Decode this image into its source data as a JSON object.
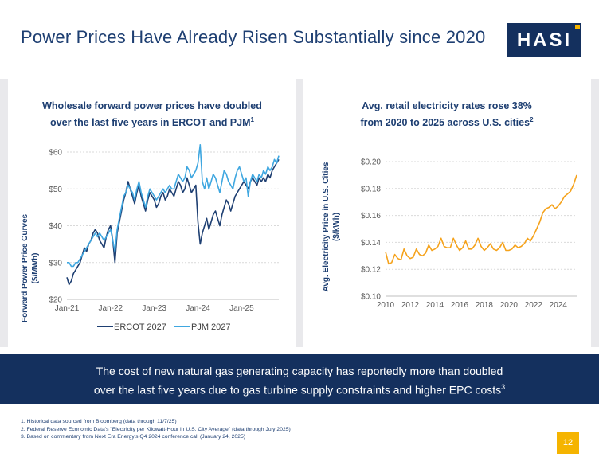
{
  "slide": {
    "title": "Power Prices Have Already Risen Substantially since 2020",
    "logo_text": "HASI",
    "banner_line1": "The cost of new natural gas generating capacity has reportedly more than doubled",
    "banner_line2": "over the last five years due to gas turbine supply constraints and higher EPC costs",
    "banner_footnote_ref": "3",
    "footnotes": [
      "1.  Historical data sourced from Bloomberg (data through 11/7/25)",
      "2.  Federal Reserve Economic Data's \"Electricity per Kilowatt-Hour in U.S. City Average\" (data through July 2025)",
      "3.  Based on commentary from Next Era Energy's Q4 2024 conference call (January 24, 2025)"
    ],
    "page_number": "12",
    "colors": {
      "navy": "#14305e",
      "gold": "#f5b400",
      "ercot": "#1e3f72",
      "pjm": "#3fa7e0",
      "retail": "#f5a21b"
    }
  },
  "chart_data": [
    {
      "type": "line",
      "title_line1": "Wholesale forward power prices have doubled",
      "title_line2": "over the last five years in ERCOT and PJM",
      "title_footnote": "1",
      "ylabel_line1": "Forward Power Price Curves",
      "ylabel_line2": "($/MWh)",
      "xlabel": "",
      "ylim": [
        20,
        60
      ],
      "xlim": [
        2021.0,
        2025.85
      ],
      "y_ticks": [
        20,
        30,
        40,
        50,
        60
      ],
      "y_tick_labels": [
        "$20",
        "$30",
        "$40",
        "$50",
        "$60"
      ],
      "x_ticks": [
        2021,
        2022,
        2023,
        2024,
        2025
      ],
      "x_tick_labels": [
        "Jan-21",
        "Jan-22",
        "Jan-23",
        "Jan-24",
        "Jan-25"
      ],
      "grid": true,
      "legend_position": "bottom",
      "series": [
        {
          "name": "ERCOT 2027",
          "color": "#1e3f72",
          "x": [
            2021.0,
            2021.05,
            2021.1,
            2021.15,
            2021.2,
            2021.25,
            2021.3,
            2021.35,
            2021.4,
            2021.45,
            2021.5,
            2021.55,
            2021.6,
            2021.65,
            2021.7,
            2021.75,
            2021.8,
            2021.85,
            2021.9,
            2021.95,
            2022.0,
            2022.05,
            2022.1,
            2022.15,
            2022.2,
            2022.25,
            2022.3,
            2022.35,
            2022.4,
            2022.45,
            2022.5,
            2022.55,
            2022.6,
            2022.65,
            2022.7,
            2022.75,
            2022.8,
            2022.85,
            2022.9,
            2022.95,
            2023.0,
            2023.05,
            2023.1,
            2023.15,
            2023.2,
            2023.25,
            2023.3,
            2023.35,
            2023.4,
            2023.45,
            2023.5,
            2023.55,
            2023.6,
            2023.65,
            2023.7,
            2023.75,
            2023.8,
            2023.85,
            2023.9,
            2023.95,
            2024.0,
            2024.05,
            2024.1,
            2024.15,
            2024.2,
            2024.25,
            2024.3,
            2024.35,
            2024.4,
            2024.45,
            2024.5,
            2024.55,
            2024.6,
            2024.65,
            2024.7,
            2024.75,
            2024.8,
            2024.85,
            2024.9,
            2024.95,
            2025.0,
            2025.05,
            2025.1,
            2025.15,
            2025.2,
            2025.25,
            2025.3,
            2025.35,
            2025.4,
            2025.45,
            2025.5,
            2025.55,
            2025.6,
            2025.65,
            2025.7,
            2025.75,
            2025.8,
            2025.85
          ],
          "values": [
            26,
            24,
            25,
            27,
            28,
            29,
            30,
            32,
            34,
            33,
            35,
            36,
            38,
            39,
            38,
            36,
            35,
            34,
            37,
            39,
            40,
            36,
            30,
            38,
            41,
            44,
            47,
            49,
            52,
            50,
            48,
            46,
            49,
            51,
            48,
            46,
            44,
            47,
            49,
            48,
            47,
            45,
            46,
            48,
            49,
            47,
            48,
            50,
            49,
            48,
            50,
            52,
            51,
            49,
            50,
            53,
            51,
            49,
            50,
            51,
            41,
            35,
            38,
            40,
            42,
            39,
            41,
            43,
            44,
            42,
            40,
            43,
            45,
            47,
            46,
            44,
            46,
            48,
            49,
            50,
            51,
            52,
            51,
            50,
            52,
            53,
            52,
            51,
            53,
            52,
            53,
            52,
            54,
            53,
            55,
            56,
            57,
            58
          ]
        },
        {
          "name": "PJM 2027",
          "color": "#3fa7e0",
          "x": [
            2021.0,
            2021.05,
            2021.1,
            2021.15,
            2021.2,
            2021.25,
            2021.3,
            2021.35,
            2021.4,
            2021.45,
            2021.5,
            2021.55,
            2021.6,
            2021.65,
            2021.7,
            2021.75,
            2021.8,
            2021.85,
            2021.9,
            2021.95,
            2022.0,
            2022.05,
            2022.1,
            2022.15,
            2022.2,
            2022.25,
            2022.3,
            2022.35,
            2022.4,
            2022.45,
            2022.5,
            2022.55,
            2022.6,
            2022.65,
            2022.7,
            2022.75,
            2022.8,
            2022.85,
            2022.9,
            2022.95,
            2023.0,
            2023.05,
            2023.1,
            2023.15,
            2023.2,
            2023.25,
            2023.3,
            2023.35,
            2023.4,
            2023.45,
            2023.5,
            2023.55,
            2023.6,
            2023.65,
            2023.7,
            2023.75,
            2023.8,
            2023.85,
            2023.9,
            2023.95,
            2024.0,
            2024.05,
            2024.1,
            2024.15,
            2024.2,
            2024.25,
            2024.3,
            2024.35,
            2024.4,
            2024.45,
            2024.5,
            2024.55,
            2024.6,
            2024.65,
            2024.7,
            2024.75,
            2024.8,
            2024.85,
            2024.9,
            2024.95,
            2025.0,
            2025.05,
            2025.1,
            2025.15,
            2025.2,
            2025.25,
            2025.3,
            2025.35,
            2025.4,
            2025.45,
            2025.5,
            2025.55,
            2025.6,
            2025.65,
            2025.7,
            2025.75,
            2025.8,
            2025.85
          ],
          "values": [
            30,
            30,
            29,
            29,
            30,
            30,
            31,
            32,
            33,
            34,
            35,
            36,
            37,
            38,
            37,
            38,
            37,
            36,
            37,
            38,
            39,
            36,
            33,
            39,
            42,
            45,
            48,
            49,
            51,
            50,
            49,
            47,
            50,
            52,
            49,
            47,
            45,
            48,
            50,
            49,
            48,
            47,
            48,
            49,
            50,
            49,
            50,
            51,
            50,
            50,
            52,
            54,
            53,
            52,
            53,
            56,
            55,
            53,
            54,
            55,
            57,
            62,
            52,
            50,
            53,
            50,
            52,
            54,
            53,
            51,
            49,
            52,
            55,
            54,
            52,
            51,
            50,
            53,
            55,
            56,
            54,
            52,
            53,
            48,
            52,
            54,
            53,
            52,
            54,
            53,
            55,
            54,
            56,
            55,
            56,
            58,
            57,
            59
          ]
        }
      ]
    },
    {
      "type": "line",
      "title_line1": "Avg. retail electricity rates rose 38%",
      "title_line2": "from 2020 to 2025 across U.S. cities",
      "title_footnote": "2",
      "ylabel_line1": "Avg. Electricity Price in U.S. Cities",
      "ylabel_line2": "($/kWh)",
      "xlabel": "",
      "ylim": [
        0.1,
        0.2
      ],
      "xlim": [
        2010,
        2025.5
      ],
      "y_ticks": [
        0.1,
        0.12,
        0.14,
        0.16,
        0.18,
        0.2
      ],
      "y_tick_labels": [
        "$0.10",
        "$0.12",
        "$0.14",
        "$0.16",
        "$0.18",
        "$0.20"
      ],
      "x_ticks": [
        2010,
        2012,
        2014,
        2016,
        2018,
        2020,
        2022,
        2024
      ],
      "x_tick_labels": [
        "2010",
        "2012",
        "2014",
        "2016",
        "2018",
        "2020",
        "2022",
        "2024"
      ],
      "grid": true,
      "legend_position": "none",
      "series": [
        {
          "name": "Avg. retail electricity price",
          "color": "#f5a21b",
          "x": [
            2010.0,
            2010.25,
            2010.5,
            2010.75,
            2011.0,
            2011.25,
            2011.5,
            2011.75,
            2012.0,
            2012.25,
            2012.5,
            2012.75,
            2013.0,
            2013.25,
            2013.5,
            2013.75,
            2014.0,
            2014.25,
            2014.5,
            2014.75,
            2015.0,
            2015.25,
            2015.5,
            2015.75,
            2016.0,
            2016.25,
            2016.5,
            2016.75,
            2017.0,
            2017.25,
            2017.5,
            2017.75,
            2018.0,
            2018.25,
            2018.5,
            2018.75,
            2019.0,
            2019.25,
            2019.5,
            2019.75,
            2020.0,
            2020.25,
            2020.5,
            2020.75,
            2021.0,
            2021.25,
            2021.5,
            2021.75,
            2022.0,
            2022.25,
            2022.5,
            2022.75,
            2023.0,
            2023.25,
            2023.5,
            2023.75,
            2024.0,
            2024.25,
            2024.5,
            2024.75,
            2025.0,
            2025.25,
            2025.5
          ],
          "values": [
            0.133,
            0.124,
            0.125,
            0.131,
            0.128,
            0.127,
            0.135,
            0.13,
            0.128,
            0.129,
            0.135,
            0.131,
            0.13,
            0.132,
            0.138,
            0.134,
            0.135,
            0.137,
            0.143,
            0.137,
            0.136,
            0.136,
            0.143,
            0.138,
            0.134,
            0.136,
            0.141,
            0.135,
            0.135,
            0.138,
            0.143,
            0.137,
            0.134,
            0.136,
            0.139,
            0.135,
            0.134,
            0.136,
            0.14,
            0.134,
            0.134,
            0.135,
            0.138,
            0.136,
            0.137,
            0.139,
            0.143,
            0.141,
            0.145,
            0.15,
            0.155,
            0.162,
            0.165,
            0.166,
            0.168,
            0.165,
            0.167,
            0.17,
            0.174,
            0.176,
            0.178,
            0.183,
            0.19
          ]
        }
      ]
    }
  ]
}
